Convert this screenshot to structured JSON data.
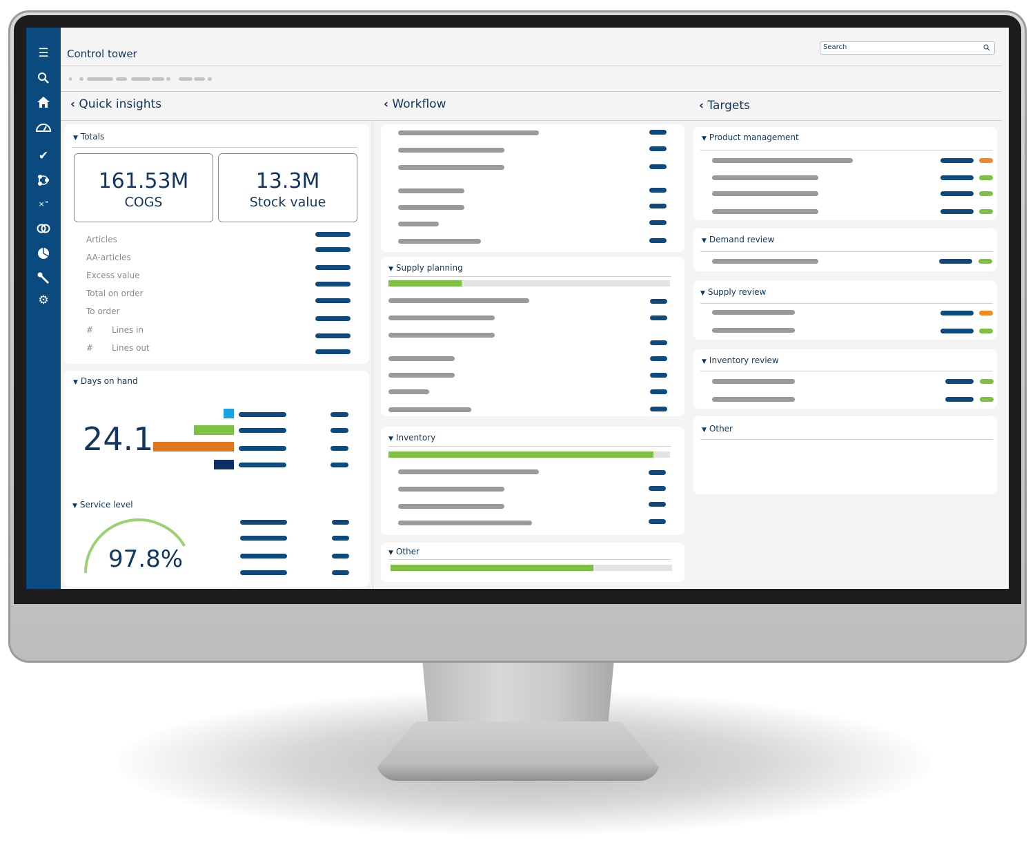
{
  "app": {
    "title": "Control tower"
  },
  "search": {
    "placeholder": "Search"
  },
  "sidebar": {
    "icons": [
      "menu-icon",
      "search-icon",
      "home-icon",
      "dashboard-icon",
      "check-icon",
      "network-icon",
      "strategy-icon",
      "rings-icon",
      "pie-chart-icon",
      "wrench-icon",
      "gear-icon"
    ]
  },
  "columns": {
    "quick_insights": {
      "title": "Quick insights",
      "totals": {
        "title": "Totals",
        "kpis": [
          {
            "value": "161.53M",
            "label": "COGS"
          },
          {
            "value": "13.3M",
            "label": "Stock value"
          }
        ],
        "rows": [
          "Articles",
          "AA-articles",
          "Excess value",
          "Total on order",
          "To order"
        ],
        "hash": "#",
        "sub_rows": [
          "Lines in",
          "Lines out"
        ]
      },
      "days_on_hand": {
        "title": "Days on hand",
        "value": "24.1",
        "bars": [
          {
            "value": 1,
            "color": "#1aa3e0"
          },
          {
            "value": 4,
            "color": "#7dc142"
          },
          {
            "value": 8,
            "color": "#e0761e"
          },
          {
            "value": 2,
            "color": "#0c2f63"
          }
        ]
      },
      "service_level": {
        "title": "Service level",
        "value": "97.8%",
        "percent": 97.8,
        "color": "#9cd070"
      }
    },
    "workflow": {
      "title": "Workflow",
      "sections": [
        {
          "title": "Supply planning",
          "progress": 26
        },
        {
          "title": "Inventory",
          "progress": 94
        },
        {
          "title": "Other",
          "progress": 72
        }
      ]
    },
    "targets": {
      "title": "Targets",
      "sections": [
        "Product management",
        "Demand review",
        "Supply review",
        "Inventory review",
        "Other"
      ]
    }
  },
  "colors": {
    "brand": "#0b4a7f",
    "text": "#12365e",
    "green": "#7dc142",
    "orange": "#f08a24"
  }
}
